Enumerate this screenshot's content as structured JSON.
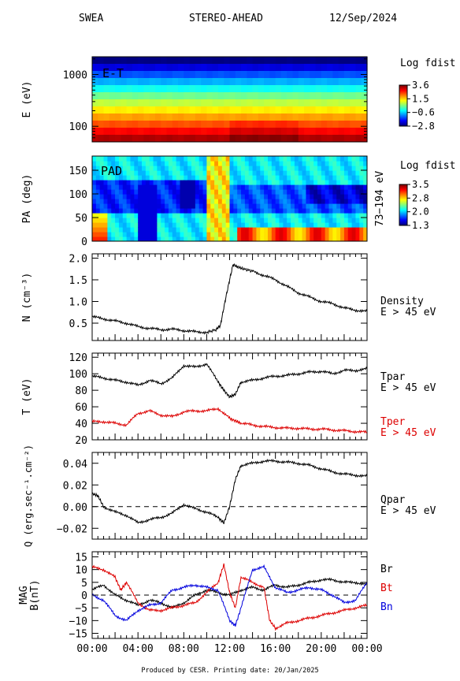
{
  "header": {
    "instrument": "SWEA",
    "spacecraft": "STEREO-AHEAD",
    "date": "12/Sep/2024"
  },
  "footer": "Produced by CESR.   Printing date: 20/Jan/2025",
  "chart_data": [
    {
      "type": "heatmap",
      "name": "E-T",
      "panel_label": "E-T",
      "ylabel": "E (eV)",
      "yscale": "log",
      "ylim": [
        50,
        2200
      ],
      "yticks": [
        {
          "v": 1000,
          "label": "1000"
        },
        {
          "v": 100,
          "label": "100"
        }
      ],
      "colorbar": {
        "title": "Log fdist",
        "ticks": [
          "3.6",
          "1.5",
          "−0.6",
          "−2.8"
        ],
        "range": [
          -2.8,
          3.6
        ]
      },
      "bands_top_to_bottom": [
        -2.8,
        -2.2,
        -1.5,
        -0.9,
        -0.3,
        0.3,
        0.8,
        1.3,
        1.8,
        2.3,
        2.8,
        3.3
      ],
      "pattern": "colors vary with energy only; slightly higher intensity at lowest energies after 12:00"
    },
    {
      "type": "heatmap",
      "name": "PAD",
      "panel_label": "PAD",
      "ylabel": "PA (deg)",
      "ylim": [
        0,
        180
      ],
      "yticks": [
        0,
        50,
        100,
        150
      ],
      "right_label": "73−194 eV",
      "colorbar": {
        "title": "Log fdist",
        "ticks": [
          "3.5",
          "2.8",
          "2.0",
          "1.3"
        ],
        "range": [
          1.3,
          3.5
        ]
      },
      "features": [
        {
          "time": "00:00-01:00",
          "pa": "0-60",
          "level": 3.2
        },
        {
          "time": "04:00-05:00",
          "pa": "0-120",
          "level": 1.5
        },
        {
          "time": "07:30-09:00",
          "pa": "70-130",
          "level": 1.4
        },
        {
          "time": "10:00-12:00",
          "pa": "0-180",
          "level": 2.8
        },
        {
          "time": "12:30-24:00",
          "pa": "0-30",
          "level": 3.3
        }
      ]
    },
    {
      "type": "line",
      "name": "density",
      "ylabel": "N (cm⁻³)",
      "ylim": [
        0.1,
        2.1
      ],
      "yticks": [
        0.5,
        1.0,
        1.5,
        2.0
      ],
      "ytick_labels": [
        "0.5",
        "1.0",
        "1.5",
        "2.0"
      ],
      "right_labels": [
        {
          "text": "Density",
          "color": "#000000"
        },
        {
          "text": "E > 45 eV",
          "color": "#000000"
        }
      ],
      "series": [
        {
          "color": "#000000",
          "x": [
            0,
            1,
            2,
            3,
            4,
            5,
            6,
            7,
            8,
            9,
            10,
            10.8,
            11.2,
            11.6,
            12.0,
            12.3,
            12.7,
            13.2,
            14,
            15,
            16,
            17,
            18,
            19,
            20,
            21,
            22,
            23,
            24
          ],
          "y": [
            0.65,
            0.6,
            0.55,
            0.5,
            0.42,
            0.38,
            0.35,
            0.36,
            0.33,
            0.3,
            0.29,
            0.35,
            0.45,
            1.0,
            1.5,
            1.85,
            1.8,
            1.75,
            1.7,
            1.6,
            1.5,
            1.35,
            1.2,
            1.1,
            1.0,
            0.95,
            0.85,
            0.8,
            0.77
          ]
        }
      ]
    },
    {
      "type": "line",
      "name": "temperature",
      "ylabel": "T (eV)",
      "ylim": [
        20,
        125
      ],
      "yticks": [
        20,
        40,
        60,
        80,
        100,
        120
      ],
      "ytick_labels": [
        "20",
        "40",
        "60",
        "80",
        "100",
        "120"
      ],
      "right_labels": [
        {
          "text": "Tpar",
          "color": "#000000"
        },
        {
          "text": "E > 45 eV",
          "color": "#000000"
        },
        {
          "text": "Tper",
          "color": "#dd0000"
        },
        {
          "text": "E > 45 eV",
          "color": "#dd0000"
        }
      ],
      "series": [
        {
          "name": "Tpar",
          "color": "#000000",
          "x": [
            0,
            1,
            2,
            3,
            4,
            5,
            6,
            7,
            8,
            9,
            10,
            11,
            11.5,
            12,
            12.5,
            13,
            14,
            15,
            16,
            17,
            18,
            19,
            20,
            21,
            22,
            23,
            24
          ],
          "y": [
            97,
            95,
            92,
            90,
            86,
            92,
            88,
            95,
            110,
            108,
            112,
            90,
            80,
            72,
            75,
            90,
            92,
            95,
            97,
            98,
            100,
            102,
            103,
            100,
            104,
            104,
            106
          ]
        },
        {
          "name": "Tper",
          "color": "#dd0000",
          "x": [
            0,
            1,
            2,
            3,
            4,
            5,
            6,
            7,
            8,
            9,
            10,
            11,
            12,
            12.5,
            13,
            14,
            15,
            16,
            17,
            18,
            19,
            20,
            21,
            22,
            23,
            24
          ],
          "y": [
            42,
            42,
            40,
            38,
            52,
            55,
            50,
            48,
            54,
            55,
            55,
            58,
            46,
            43,
            40,
            38,
            36,
            35,
            34,
            34,
            33,
            33,
            32,
            31,
            30,
            29
          ]
        }
      ]
    },
    {
      "type": "line",
      "name": "heat_flux",
      "ylabel": "Q (erg.sec⁻¹.cm⁻²)",
      "ylim": [
        -0.03,
        0.05
      ],
      "yticks": [
        -0.02,
        0.0,
        0.02,
        0.04
      ],
      "ytick_labels": [
        "−0.02",
        "0.00",
        "0.02",
        "0.04"
      ],
      "reference_line": 0,
      "right_labels": [
        {
          "text": "Qpar",
          "color": "#000000"
        },
        {
          "text": "E > 45 eV",
          "color": "#000000"
        }
      ],
      "series": [
        {
          "color": "#000000",
          "x": [
            0,
            0.5,
            1,
            2,
            3,
            4,
            5,
            6,
            7,
            8,
            9,
            10,
            11,
            11.5,
            12,
            12.5,
            13,
            14,
            15,
            16,
            17,
            18,
            19,
            20,
            21,
            22,
            23,
            24
          ],
          "y": [
            0.012,
            0.01,
            0.0,
            -0.005,
            -0.008,
            -0.015,
            -0.012,
            -0.01,
            -0.006,
            0.002,
            -0.002,
            -0.005,
            -0.01,
            -0.015,
            0.0,
            0.025,
            0.038,
            0.04,
            0.042,
            0.042,
            0.041,
            0.04,
            0.038,
            0.035,
            0.032,
            0.03,
            0.029,
            0.028
          ]
        }
      ]
    },
    {
      "type": "line",
      "name": "magnetic_field",
      "ylabel": "MAG B(nT)",
      "ylim": [
        -17,
        17
      ],
      "yticks": [
        -15,
        -10,
        -5,
        0,
        5,
        10,
        15
      ],
      "ytick_labels": [
        "−15",
        "−10",
        "−5",
        "0",
        "5",
        "10",
        "15"
      ],
      "reference_line": 0,
      "xticks": [
        "00:00",
        "04:00",
        "08:00",
        "12:00",
        "16:00",
        "20:00",
        "00:00"
      ],
      "right_labels": [
        {
          "text": "Br",
          "color": "#000000"
        },
        {
          "text": "Bt",
          "color": "#dd0000"
        },
        {
          "text": "Bn",
          "color": "#0000dd"
        }
      ],
      "series": [
        {
          "name": "Br",
          "color": "#000000",
          "x": [
            0,
            1,
            2,
            3,
            4,
            5,
            6,
            7,
            8,
            9,
            10,
            11,
            12,
            13,
            14,
            15,
            16,
            17,
            18,
            19,
            20,
            21,
            22,
            23,
            24
          ],
          "y": [
            2,
            4,
            0,
            -2,
            -4,
            -2,
            -3,
            -5,
            -3,
            0,
            2,
            1,
            0,
            2,
            3,
            2,
            4,
            3,
            4,
            5,
            6,
            6,
            5,
            5,
            4
          ]
        },
        {
          "name": "Bt",
          "color": "#dd0000",
          "x": [
            0,
            1,
            2,
            2.5,
            3,
            4,
            5,
            6,
            7,
            8,
            9,
            10,
            11,
            11.5,
            12,
            12.5,
            13,
            14,
            15,
            15.5,
            16,
            17,
            18,
            19,
            20,
            21,
            22,
            23,
            24
          ],
          "y": [
            11,
            10,
            7,
            2,
            5,
            -3,
            -6,
            -6,
            -5,
            -4,
            -3,
            1,
            5,
            12,
            1,
            -5,
            7,
            5,
            3,
            -10,
            -13,
            -11,
            -10,
            -9,
            -8,
            -7,
            -6,
            -5,
            -4
          ]
        },
        {
          "name": "Bn",
          "color": "#0000dd",
          "x": [
            0,
            1,
            2,
            3,
            4,
            5,
            6,
            7,
            8,
            9,
            10,
            11,
            12,
            12.5,
            13,
            14,
            15,
            16,
            17,
            18,
            19,
            20,
            21,
            22,
            23,
            24
          ],
          "y": [
            0,
            -2,
            -8,
            -10,
            -6,
            -4,
            -3,
            2,
            3,
            4,
            3,
            2,
            -10,
            -12,
            -5,
            10,
            11,
            3,
            1,
            2,
            3,
            2,
            0,
            -3,
            -2,
            5
          ]
        }
      ]
    }
  ]
}
